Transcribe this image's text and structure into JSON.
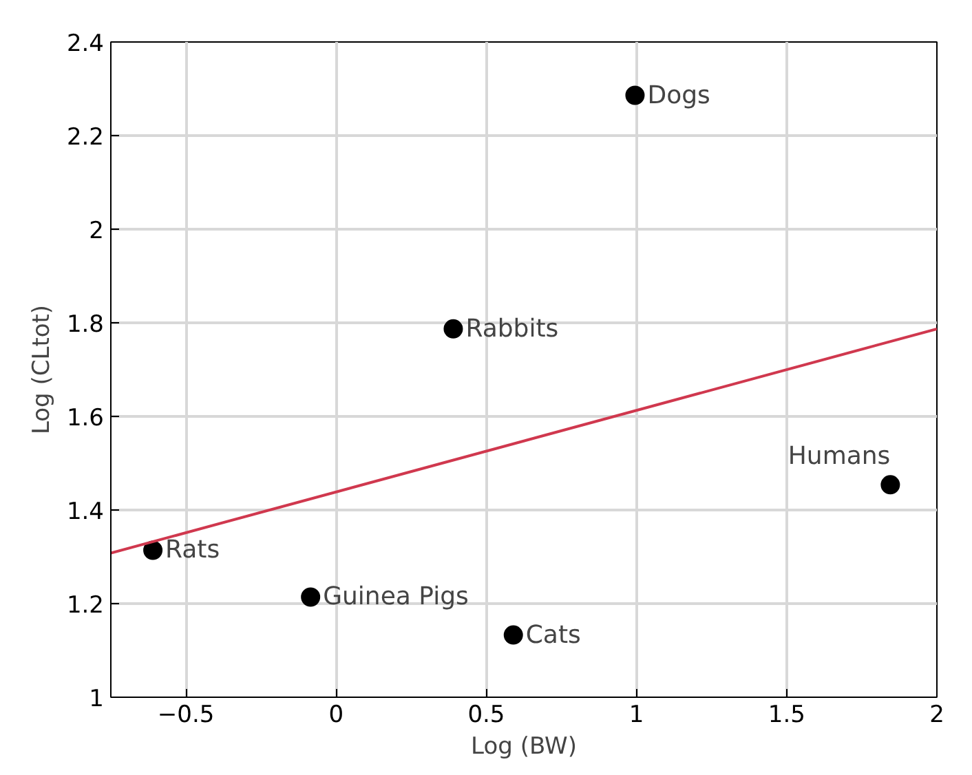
{
  "chart_data": {
    "type": "scatter",
    "xlabel": "Log (BW)",
    "ylabel": "Log (CLtot)",
    "x": [
      -0.61,
      -0.085,
      0.59,
      0.39,
      0.995,
      1.845
    ],
    "series": [
      {
        "marker": "circle",
        "color": "#000000",
        "values": [
          1.314,
          1.214,
          1.133,
          1.787,
          2.286,
          1.454
        ]
      },
      {
        "type": "line",
        "marker": "none",
        "color": "#d0384e",
        "x": [
          -0.75,
          2
        ],
        "values": [
          1.308,
          1.787
        ]
      }
    ],
    "annotations": [
      {
        "text": "Rats",
        "x": -0.61,
        "y": 1.314
      },
      {
        "text": "Guinea Pigs",
        "x": -0.085,
        "y": 1.214
      },
      {
        "text": "Cats",
        "x": 0.59,
        "y": 1.133
      },
      {
        "text": "Rabbits",
        "x": 0.39,
        "y": 1.787
      },
      {
        "text": "Dogs",
        "x": 0.995,
        "y": 2.286
      },
      {
        "text": "Humans",
        "x": 1.845,
        "y": 1.454
      }
    ],
    "xlim": [
      -0.75,
      2
    ],
    "ylim": [
      1,
      2.4
    ],
    "xticks": [
      {
        "value": -0.5,
        "label": "−0.5"
      },
      0,
      0.5,
      1,
      1.5,
      2
    ],
    "yticks": [
      1,
      1.2,
      1.4,
      1.6,
      1.8,
      2,
      2.2,
      2.4
    ],
    "grid": true
  }
}
